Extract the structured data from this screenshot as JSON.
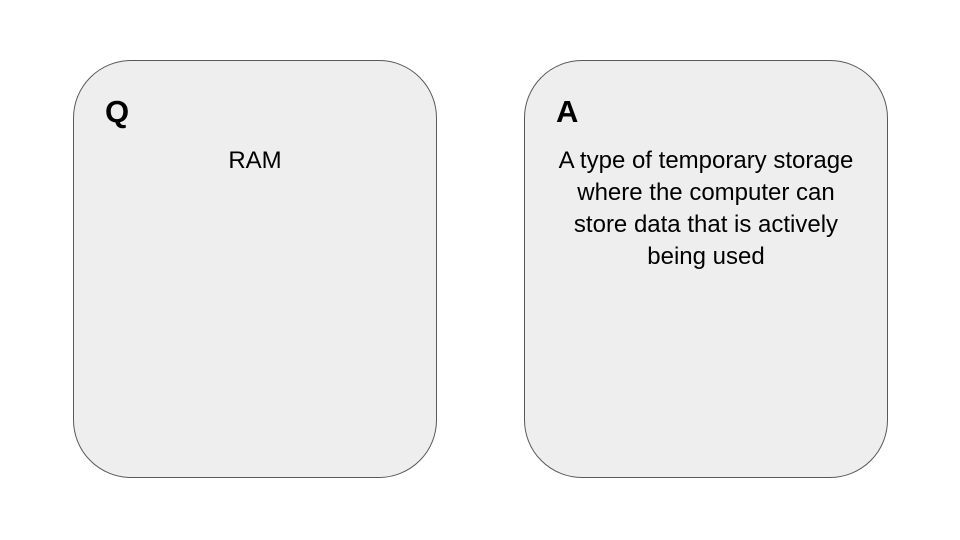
{
  "question_card": {
    "letter": "Q",
    "text": "RAM"
  },
  "answer_card": {
    "letter": "A",
    "text": "A type of temporary storage where the computer can store data that is actively being used"
  },
  "colors": {
    "card_fill": "#eeeeee",
    "card_border": "#595959",
    "background": "#ffffff"
  }
}
